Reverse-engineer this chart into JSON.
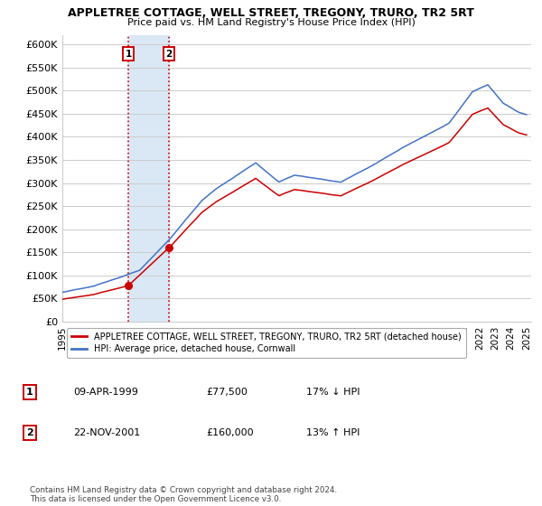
{
  "title": "APPLETREE COTTAGE, WELL STREET, TREGONY, TRURO, TR2 5RT",
  "subtitle": "Price paid vs. HM Land Registry's House Price Index (HPI)",
  "ylim": [
    0,
    620000
  ],
  "yticks": [
    0,
    50000,
    100000,
    150000,
    200000,
    250000,
    300000,
    350000,
    400000,
    450000,
    500000,
    550000,
    600000
  ],
  "ytick_labels": [
    "£0",
    "£50K",
    "£100K",
    "£150K",
    "£200K",
    "£250K",
    "£300K",
    "£350K",
    "£400K",
    "£450K",
    "£500K",
    "£550K",
    "£600K"
  ],
  "sale1_date": "09-APR-1999",
  "sale1_price": 77500,
  "sale1_pct": "17% ↓ HPI",
  "sale1_year": 1999.27,
  "sale2_date": "22-NOV-2001",
  "sale2_price": 160000,
  "sale2_pct": "13% ↑ HPI",
  "sale2_year": 2001.9,
  "legend_property": "APPLETREE COTTAGE, WELL STREET, TREGONY, TRURO, TR2 5RT (detached house)",
  "legend_hpi": "HPI: Average price, detached house, Cornwall",
  "footer": "Contains HM Land Registry data © Crown copyright and database right 2024.\nThis data is licensed under the Open Government Licence v3.0.",
  "property_color": "#cc0000",
  "hpi_color": "#4472c4",
  "shade_color": "#dae8f5",
  "vline_color": "#cc0000",
  "grid_color": "#cccccc",
  "background_color": "#ffffff",
  "xlim_left": 1995.0,
  "xlim_right": 2025.3
}
